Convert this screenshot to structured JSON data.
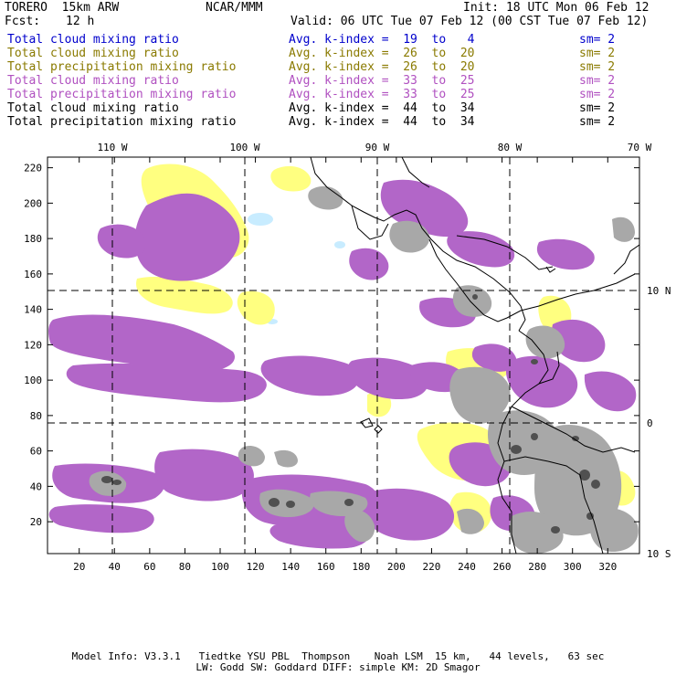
{
  "header": {
    "model": "TORERO  15km ARW",
    "center": "NCAR/MMM",
    "init": "Init: 18 UTC Mon 06 Feb 12",
    "fcst_label": "Fcst:",
    "fcst_hours": "12 h",
    "valid": "Valid: 06 UTC Tue 07 Feb 12 (00 CST Tue 07 Feb 12)"
  },
  "legend": [
    {
      "field": "Total cloud mixing ratio",
      "index": "Avg. k-index =  19  to   4",
      "sm": "sm= 2",
      "color": "#0000cc"
    },
    {
      "field": "Total cloud mixing ratio",
      "index": "Avg. k-index =  26  to  20",
      "sm": "sm= 2",
      "color": "#8a7a00"
    },
    {
      "field": "Total precipitation mixing ratio",
      "index": "Avg. k-index =  26  to  20",
      "sm": "sm= 2",
      "color": "#8a7a00"
    },
    {
      "field": "Total cloud mixing ratio",
      "index": "Avg. k-index =  33  to  25",
      "sm": "sm= 2",
      "color": "#b050c0"
    },
    {
      "field": "Total precipitation mixing ratio",
      "index": "Avg. k-index =  33  to  25",
      "sm": "sm= 2",
      "color": "#b050c0"
    },
    {
      "field": "Total cloud mixing ratio",
      "index": "Avg. k-index =  44  to  34",
      "sm": "sm= 2",
      "color": "#000000"
    },
    {
      "field": "Total precipitation mixing ratio",
      "index": "Avg. k-index =  44  to  34",
      "sm": "sm= 2",
      "color": "#000000"
    }
  ],
  "map": {
    "lon_labels": [
      "110 W",
      "100 W",
      "90 W",
      "80 W",
      "70 W"
    ],
    "lat_labels": [
      "10 N",
      "0",
      "10 S"
    ],
    "x_ticks": [
      "20",
      "40",
      "60",
      "80",
      "100",
      "120",
      "140",
      "160",
      "180",
      "200",
      "220",
      "240",
      "260",
      "280",
      "300",
      "320"
    ],
    "y_ticks": [
      "220",
      "200",
      "180",
      "160",
      "140",
      "120",
      "100",
      "80",
      "60",
      "40",
      "20"
    ],
    "colors": {
      "yellow": "#ffff80",
      "purple": "#b266c8",
      "gray": "#a8a8a8",
      "dark": "#505050",
      "lightblue": "#c8ecff"
    }
  },
  "footer": {
    "line1": "Model Info: V3.3.1   Tiedtke YSU PBL  Thompson    Noah LSM  15 km,   44 levels,   63 sec",
    "line2": "LW: Godd SW: Goddard DIFF: simple KM: 2D Smagor"
  }
}
